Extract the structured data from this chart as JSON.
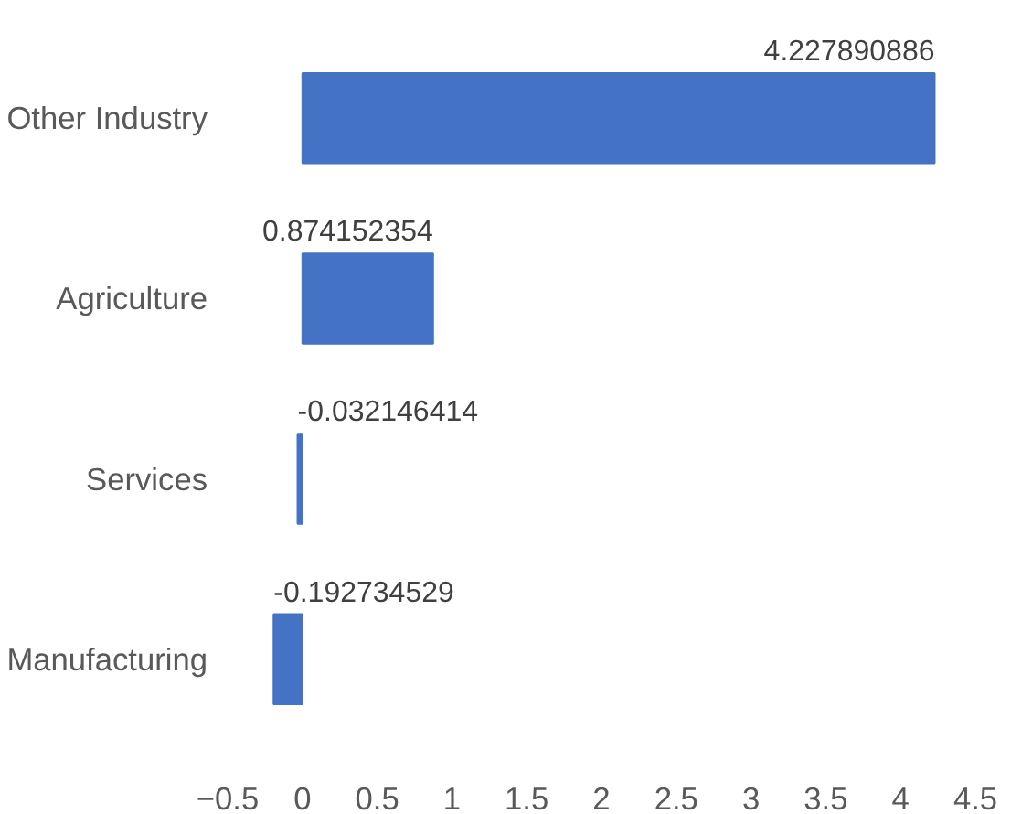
{
  "chart_data": {
    "type": "bar",
    "orientation": "horizontal",
    "categories": [
      "Other Industry",
      "Agriculture",
      "Services",
      "Manufacturing"
    ],
    "values": [
      4.227890886,
      0.874152354,
      -0.032146414,
      -0.192734529
    ],
    "color": "#4472c4",
    "data_labels": true,
    "xlim": [
      -0.5,
      4.5
    ],
    "xticks": [
      -0.5,
      0,
      0.5,
      1,
      1.5,
      2,
      2.5,
      3,
      3.5,
      4,
      4.5
    ],
    "grid": false
  }
}
